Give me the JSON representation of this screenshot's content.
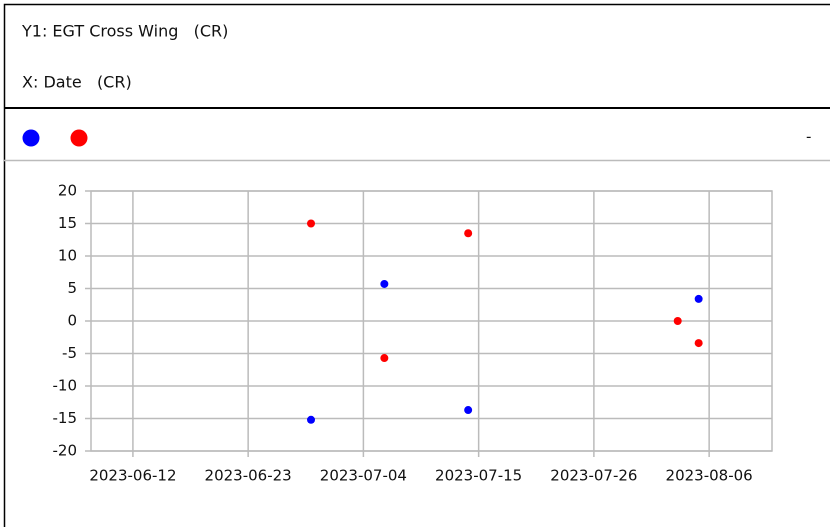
{
  "header": {
    "y_label": "Y1: EGT Cross Wing   (CR)",
    "x_label": "X: Date   (CR)",
    "toggle": "-"
  },
  "chart_data": {
    "type": "scatter",
    "xlim": [
      "2023-06-08",
      "2023-08-12"
    ],
    "xticks": [
      "2023-06-12",
      "2023-06-23",
      "2023-07-04",
      "2023-07-15",
      "2023-07-26",
      "2023-08-06"
    ],
    "ylim": [
      -20,
      20
    ],
    "yticks": [
      -20,
      -15,
      -10,
      -5,
      0,
      5,
      10,
      15,
      20
    ],
    "grid": true,
    "series": [
      {
        "color": "#0000ff",
        "x": [
          "2023-06-29",
          "2023-07-06",
          "2023-07-14",
          "2023-08-05"
        ],
        "values": [
          -15.2,
          5.7,
          -13.7,
          3.4
        ]
      },
      {
        "color": "#ff0000",
        "x": [
          "2023-06-29",
          "2023-07-06",
          "2023-07-14",
          "2023-08-03",
          "2023-08-05"
        ],
        "values": [
          15,
          -5.7,
          13.5,
          0,
          -3.4
        ]
      }
    ]
  }
}
